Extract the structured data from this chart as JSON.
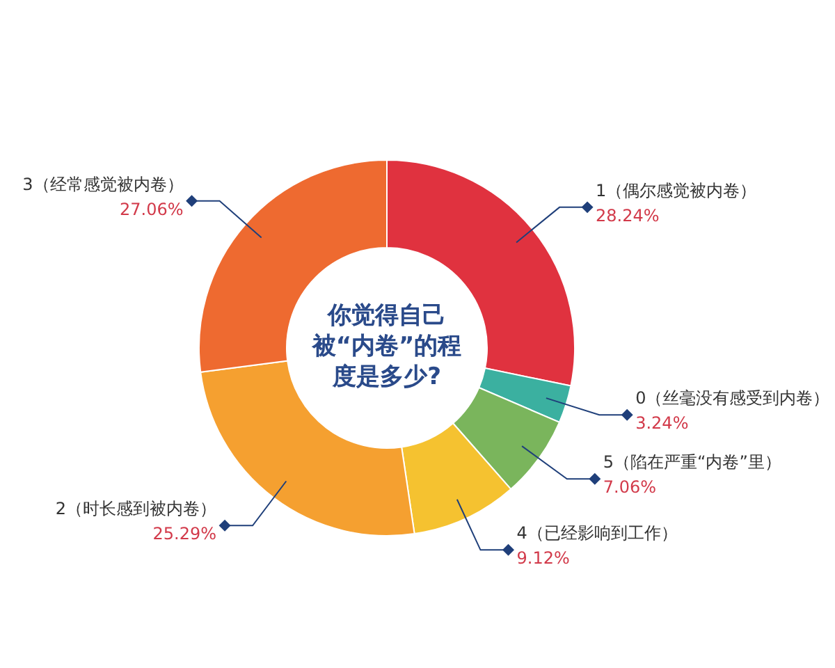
{
  "chart_data": {
    "type": "donut",
    "title": "你觉得自己被“内卷”的程度是多少?",
    "categories": [
      "1（偶尔感觉被内卷）",
      "0（丝毫没有感受到内卷）",
      "5（陷在严重“内卷”里）",
      "4（已经影响到工作）",
      "2（时长感到被内卷）",
      "3（经常感觉被内卷）"
    ],
    "values": [
      28.24,
      3.24,
      7.06,
      9.12,
      25.29,
      27.06
    ],
    "value_labels": [
      "28.24%",
      "3.24%",
      "7.06%",
      "9.12%",
      "25.29%",
      "27.06%"
    ],
    "colors": [
      "#e0323f",
      "#3bb0a0",
      "#7ab55c",
      "#f5c230",
      "#f5a030",
      "#ee6a30"
    ]
  }
}
